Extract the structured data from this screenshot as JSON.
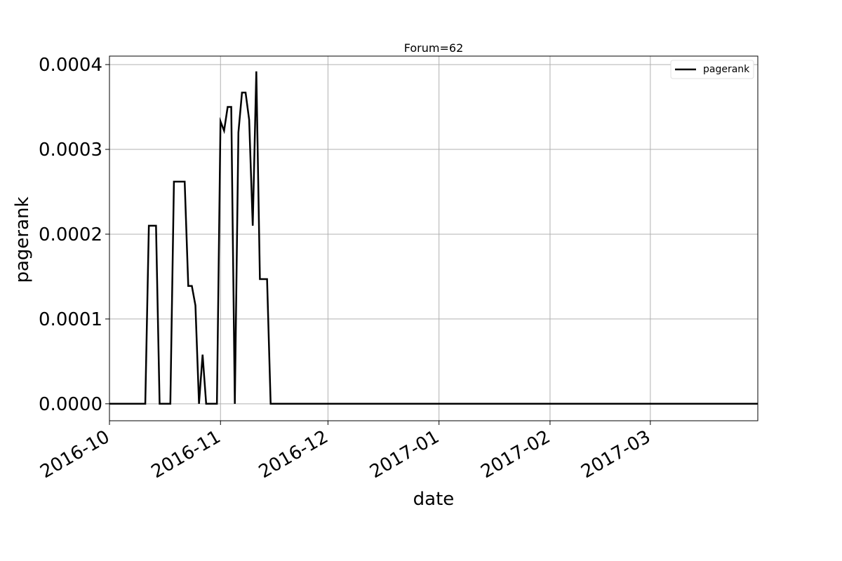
{
  "chart_data": {
    "type": "line",
    "title": "Forum=62",
    "xlabel": "date",
    "ylabel": "pagerank",
    "xlim": [
      "2016-10-01",
      "2017-03-31"
    ],
    "ylim": [
      -2e-05,
      0.00041
    ],
    "x_ticks": [
      "2016-10",
      "2016-11",
      "2016-12",
      "2017-01",
      "2017-02",
      "2017-03"
    ],
    "x_tick_dates": [
      "2016-10-01",
      "2016-11-01",
      "2016-12-01",
      "2017-01-01",
      "2017-02-01",
      "2017-03-01"
    ],
    "y_ticks": [
      0.0,
      0.0001,
      0.0002,
      0.0003,
      0.0004
    ],
    "y_tick_labels": [
      "0.0000",
      "0.0001",
      "0.0002",
      "0.0003",
      "0.0004"
    ],
    "grid": true,
    "legend": {
      "placement": "top-right",
      "entries": [
        "pagerank"
      ]
    },
    "series": [
      {
        "name": "pagerank",
        "color": "#000000",
        "x": [
          "2016-10-01",
          "2016-10-11",
          "2016-10-12",
          "2016-10-13",
          "2016-10-14",
          "2016-10-15",
          "2016-10-18",
          "2016-10-19",
          "2016-10-20",
          "2016-10-21",
          "2016-10-22",
          "2016-10-23",
          "2016-10-24",
          "2016-10-25",
          "2016-10-26",
          "2016-10-27",
          "2016-10-28",
          "2016-10-29",
          "2016-10-30",
          "2016-10-31",
          "2016-11-01",
          "2016-11-02",
          "2016-11-03",
          "2016-11-04",
          "2016-11-05",
          "2016-11-06",
          "2016-11-07",
          "2016-11-08",
          "2016-11-09",
          "2016-11-10",
          "2016-11-11",
          "2016-11-12",
          "2016-11-13",
          "2016-11-14",
          "2016-11-15",
          "2016-11-16",
          "2016-11-17",
          "2016-11-18",
          "2017-03-31"
        ],
        "values": [
          0.0,
          0.0,
          0.00021,
          0.00021,
          0.00021,
          0.0,
          0.0,
          0.000262,
          0.000262,
          0.000262,
          0.000262,
          0.000139,
          0.000139,
          0.000116,
          0.0,
          5.8e-05,
          0.0,
          0.0,
          0.0,
          0.0,
          0.000333,
          0.000322,
          0.00035,
          0.00035,
          0.0,
          0.00032,
          0.000367,
          0.000367,
          0.000335,
          0.00021,
          0.000392,
          0.000147,
          0.000147,
          0.000147,
          0.0,
          0.0,
          0.0,
          0.0,
          0.0
        ]
      }
    ]
  }
}
